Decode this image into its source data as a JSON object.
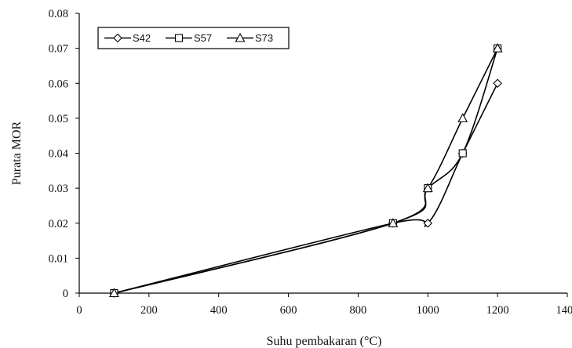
{
  "chart_data": {
    "type": "line",
    "title": "",
    "xlabel": "Suhu pembakaran (°C)",
    "ylabel": "Purata MOR",
    "xlim": [
      0,
      1400
    ],
    "ylim": [
      0,
      0.08
    ],
    "xticks": [
      0,
      200,
      400,
      600,
      800,
      1000,
      1200,
      1400
    ],
    "yticks": [
      0,
      0.01,
      0.02,
      0.03,
      0.04,
      0.05,
      0.06,
      0.07,
      0.08
    ],
    "xtick_labels": [
      "0",
      "200",
      "400",
      "600",
      "800",
      "1000",
      "1200",
      "1400"
    ],
    "ytick_labels": [
      "0",
      "0.01",
      "0.02",
      "0.03",
      "0.04",
      "0.05",
      "0.06",
      "0.07",
      "0.08"
    ],
    "grid": false,
    "smooth": true,
    "legend_position": "top-left",
    "series": [
      {
        "name": "S42",
        "marker": "diamond",
        "x": [
          100,
          900,
          1000,
          1100,
          1200
        ],
        "y": [
          0,
          0.02,
          0.02,
          0.04,
          0.06
        ]
      },
      {
        "name": "S57",
        "marker": "square",
        "x": [
          100,
          900,
          1000,
          1100,
          1200
        ],
        "y": [
          0,
          0.02,
          0.03,
          0.04,
          0.07
        ]
      },
      {
        "name": "S73",
        "marker": "triangle",
        "x": [
          100,
          900,
          1000,
          1100,
          1200
        ],
        "y": [
          0,
          0.02,
          0.03,
          0.05,
          0.07
        ]
      }
    ]
  }
}
